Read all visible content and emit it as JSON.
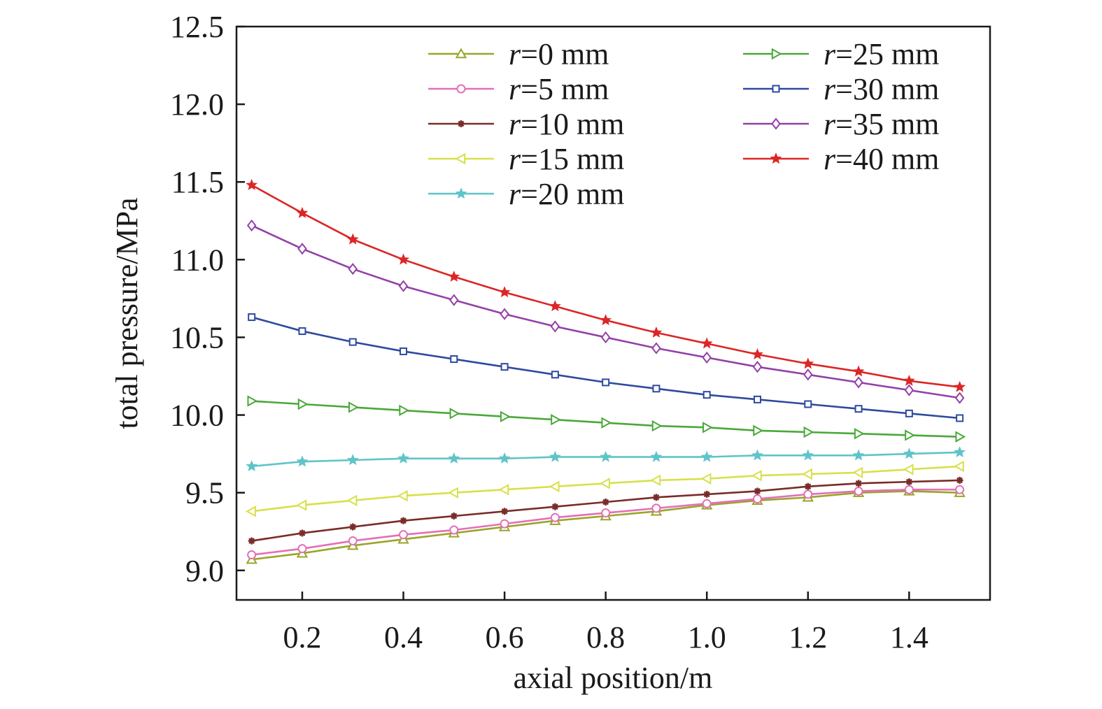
{
  "chart_data": {
    "type": "line",
    "xlabel": "axial position/m",
    "ylabel": "total pressure/MPa",
    "xlim": [
      0.07,
      1.56
    ],
    "ylim": [
      8.81,
      12.5
    ],
    "x_ticks": [
      0.2,
      0.4,
      0.6,
      0.8,
      1.0,
      1.2,
      1.4
    ],
    "x_tick_labels": [
      "0.2",
      "0.4",
      "0.6",
      "0.8",
      "1.0",
      "1.2",
      "1.4"
    ],
    "y_ticks": [
      9.0,
      9.5,
      10.0,
      10.5,
      11.0,
      11.5,
      12.0,
      12.5
    ],
    "y_tick_labels": [
      "9.0",
      "9.5",
      "10.0",
      "10.5",
      "11.0",
      "11.5",
      "12.0",
      "12.5"
    ],
    "grid": false,
    "legend_position": "top-right, two columns",
    "legend_prefix": "r",
    "x": [
      0.1,
      0.2,
      0.3,
      0.4,
      0.5,
      0.6,
      0.7,
      0.8,
      0.9,
      1.0,
      1.1,
      1.2,
      1.3,
      1.4,
      1.5
    ],
    "series": [
      {
        "name": "=0 mm",
        "color": "#9aa52a",
        "marker": "triangle-up",
        "values": [
          9.07,
          9.11,
          9.16,
          9.2,
          9.24,
          9.28,
          9.32,
          9.35,
          9.38,
          9.42,
          9.45,
          9.47,
          9.5,
          9.51,
          9.5
        ]
      },
      {
        "name": "=5 mm",
        "color": "#e36fb8",
        "marker": "circle",
        "values": [
          9.1,
          9.14,
          9.19,
          9.23,
          9.26,
          9.3,
          9.34,
          9.37,
          9.4,
          9.43,
          9.46,
          9.49,
          9.51,
          9.52,
          9.52
        ]
      },
      {
        "name": "=10 mm",
        "color": "#7a2c28",
        "marker": "asterisk",
        "values": [
          9.19,
          9.24,
          9.28,
          9.32,
          9.35,
          9.38,
          9.41,
          9.44,
          9.47,
          9.49,
          9.51,
          9.54,
          9.56,
          9.57,
          9.58
        ]
      },
      {
        "name": "=15 mm",
        "color": "#d8e04a",
        "marker": "triangle-left",
        "values": [
          9.38,
          9.42,
          9.45,
          9.48,
          9.5,
          9.52,
          9.54,
          9.56,
          9.58,
          9.59,
          9.61,
          9.62,
          9.63,
          9.65,
          9.67
        ]
      },
      {
        "name": "=20 mm",
        "color": "#5fc4c8",
        "marker": "star",
        "values": [
          9.67,
          9.7,
          9.71,
          9.72,
          9.72,
          9.72,
          9.73,
          9.73,
          9.73,
          9.73,
          9.74,
          9.74,
          9.74,
          9.75,
          9.76
        ]
      },
      {
        "name": "=25 mm",
        "color": "#4aa83a",
        "marker": "triangle-right",
        "values": [
          10.09,
          10.07,
          10.05,
          10.03,
          10.01,
          9.99,
          9.97,
          9.95,
          9.93,
          9.92,
          9.9,
          9.89,
          9.88,
          9.87,
          9.86
        ]
      },
      {
        "name": "=30 mm",
        "color": "#2e4aa0",
        "marker": "square",
        "values": [
          10.63,
          10.54,
          10.47,
          10.41,
          10.36,
          10.31,
          10.26,
          10.21,
          10.17,
          10.13,
          10.1,
          10.07,
          10.04,
          10.01,
          9.98
        ]
      },
      {
        "name": "=35 mm",
        "color": "#9440a8",
        "marker": "diamond",
        "values": [
          11.22,
          11.07,
          10.94,
          10.83,
          10.74,
          10.65,
          10.57,
          10.5,
          10.43,
          10.37,
          10.31,
          10.26,
          10.21,
          10.16,
          10.11
        ]
      },
      {
        "name": "=40 mm",
        "color": "#dc2626",
        "marker": "star",
        "values": [
          11.48,
          11.3,
          11.13,
          11.0,
          10.89,
          10.79,
          10.7,
          10.61,
          10.53,
          10.46,
          10.39,
          10.33,
          10.28,
          10.22,
          10.18
        ]
      }
    ]
  }
}
